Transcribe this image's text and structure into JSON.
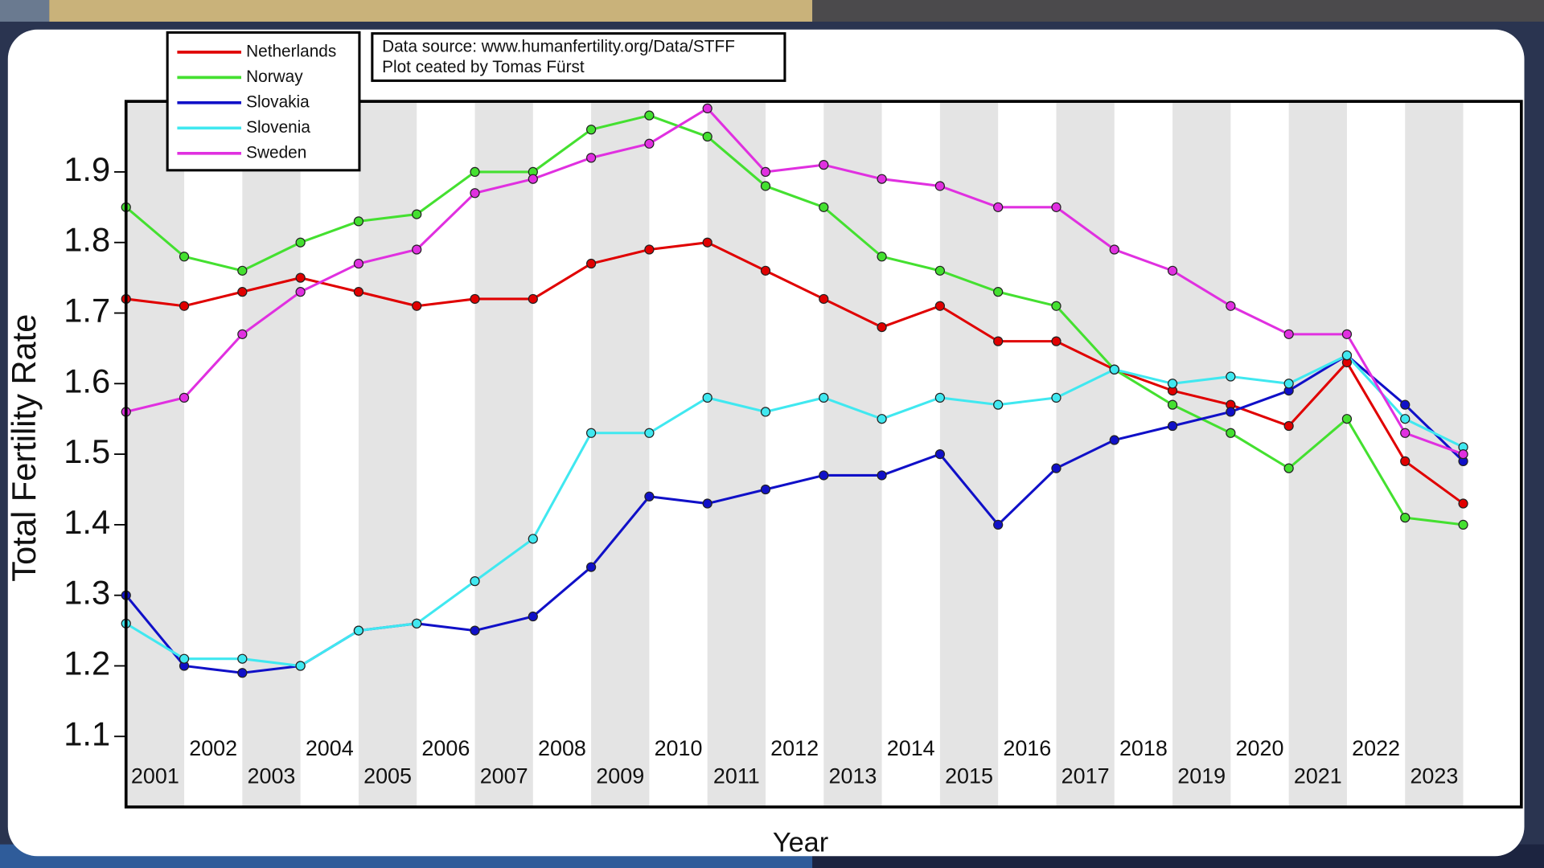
{
  "chart_data": {
    "type": "line",
    "x_label": "Year",
    "y_label": "Total Fertility Rate",
    "annotation": [
      "Data source: www.humanfertility.org/Data/STFF",
      "Plot ceated by Tomas Fürst"
    ],
    "x": [
      2000,
      2001,
      2002,
      2003,
      2004,
      2005,
      2006,
      2007,
      2008,
      2009,
      2010,
      2011,
      2012,
      2013,
      2014,
      2015,
      2016,
      2017,
      2018,
      2019,
      2020,
      2021,
      2022,
      2023
    ],
    "xlim": [
      2000,
      2024
    ],
    "xticks": [
      2001,
      2002,
      2003,
      2004,
      2005,
      2006,
      2007,
      2008,
      2009,
      2010,
      2011,
      2012,
      2013,
      2014,
      2015,
      2016,
      2017,
      2018,
      2019,
      2020,
      2021,
      2022,
      2023
    ],
    "ylim": [
      1.0,
      2.0
    ],
    "yticks": [
      1.1,
      1.2,
      1.3,
      1.4,
      1.5,
      1.6,
      1.7,
      1.8,
      1.9
    ],
    "legend_position": "upper left",
    "series": [
      {
        "name": "Netherlands",
        "color": "#e00000",
        "values": [
          1.72,
          1.71,
          1.73,
          1.75,
          1.73,
          1.71,
          1.72,
          1.72,
          1.77,
          1.79,
          1.8,
          1.76,
          1.72,
          1.68,
          1.71,
          1.66,
          1.66,
          1.62,
          1.59,
          1.57,
          1.54,
          1.63,
          1.49,
          1.43
        ]
      },
      {
        "name": "Norway",
        "color": "#44e030",
        "values": [
          1.85,
          1.78,
          1.76,
          1.8,
          1.83,
          1.84,
          1.9,
          1.9,
          1.96,
          1.98,
          1.95,
          1.88,
          1.85,
          1.78,
          1.76,
          1.73,
          1.71,
          1.62,
          1.57,
          1.53,
          1.48,
          1.55,
          1.41,
          1.4
        ]
      },
      {
        "name": "Slovakia",
        "color": "#1010c8",
        "values": [
          1.3,
          1.2,
          1.19,
          1.2,
          1.25,
          1.26,
          1.25,
          1.27,
          1.34,
          1.44,
          1.43,
          1.45,
          1.47,
          1.47,
          1.5,
          1.4,
          1.48,
          1.52,
          1.54,
          1.56,
          1.59,
          1.64,
          1.57,
          1.49
        ]
      },
      {
        "name": "Slovenia",
        "color": "#40e8f0",
        "values": [
          1.26,
          1.21,
          1.21,
          1.2,
          1.25,
          1.26,
          1.32,
          1.38,
          1.53,
          1.53,
          1.58,
          1.56,
          1.58,
          1.55,
          1.58,
          1.57,
          1.58,
          1.62,
          1.6,
          1.61,
          1.6,
          1.64,
          1.55,
          1.51
        ]
      },
      {
        "name": "Sweden",
        "color": "#e030e0",
        "values": [
          1.56,
          1.58,
          1.67,
          1.73,
          1.77,
          1.79,
          1.87,
          1.89,
          1.92,
          1.94,
          1.99,
          1.9,
          1.91,
          1.89,
          1.88,
          1.85,
          1.85,
          1.79,
          1.76,
          1.71,
          1.67,
          1.67,
          1.53,
          1.5
        ]
      }
    ]
  }
}
